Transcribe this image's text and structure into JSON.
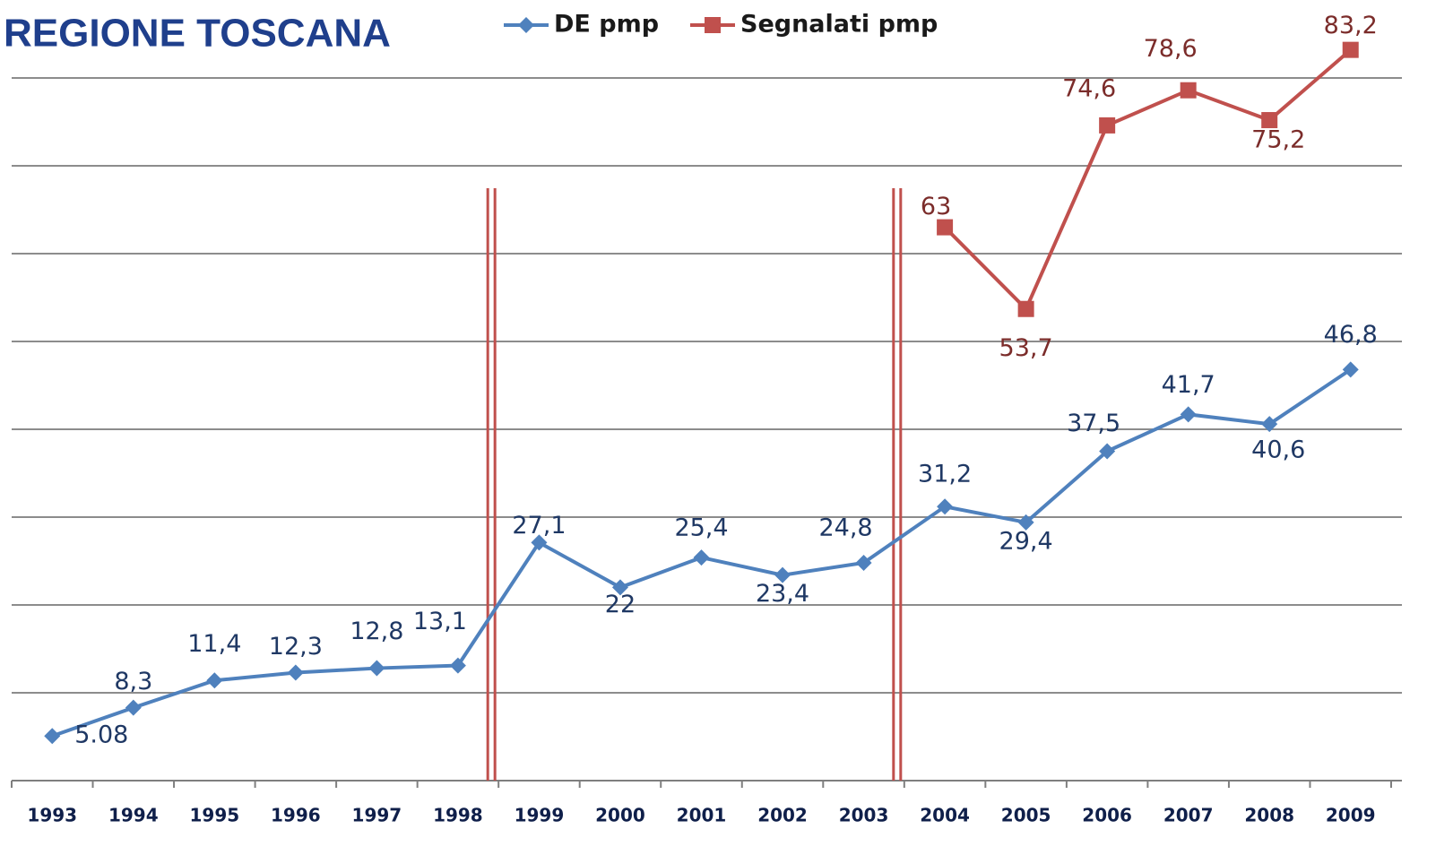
{
  "chart_data": {
    "type": "line",
    "title": "REGIONE TOSCANA",
    "categories": [
      "1993",
      "1994",
      "1995",
      "1996",
      "1997",
      "1998",
      "1999",
      "2000",
      "2001",
      "2002",
      "2003",
      "2004",
      "2005",
      "2006",
      "2007",
      "2008",
      "2009"
    ],
    "series": [
      {
        "name": "DE pmp",
        "color": "#4f81bd",
        "label_color": "#1f3864",
        "values": [
          5.08,
          8.3,
          11.4,
          12.3,
          12.8,
          13.1,
          27.1,
          22,
          25.4,
          23.4,
          24.8,
          31.2,
          29.4,
          37.5,
          41.7,
          40.6,
          46.8
        ],
        "value_labels": [
          "5.08",
          "8,3",
          "11,4",
          "12,3",
          "12,8",
          "13,1",
          "27,1",
          "22",
          "25,4",
          "23,4",
          "24,8",
          "31,2",
          "29,4",
          "37,5",
          "41,7",
          "40,6",
          "46,8"
        ]
      },
      {
        "name": "Segnalati pmp",
        "color": "#c0504d",
        "label_color": "#7b2c2a",
        "values": [
          null,
          null,
          null,
          null,
          null,
          null,
          null,
          null,
          null,
          null,
          null,
          63,
          53.7,
          74.6,
          78.6,
          75.2,
          83.2
        ],
        "value_labels": [
          null,
          null,
          null,
          null,
          null,
          null,
          null,
          null,
          null,
          null,
          null,
          "63",
          "53,7",
          "74,6",
          "78,6",
          "75,2",
          "83,2"
        ]
      }
    ],
    "ylim": [
      0,
      80
    ],
    "yticks": [
      0,
      10,
      20,
      30,
      40,
      50,
      60,
      70,
      80
    ],
    "grid": true
  }
}
